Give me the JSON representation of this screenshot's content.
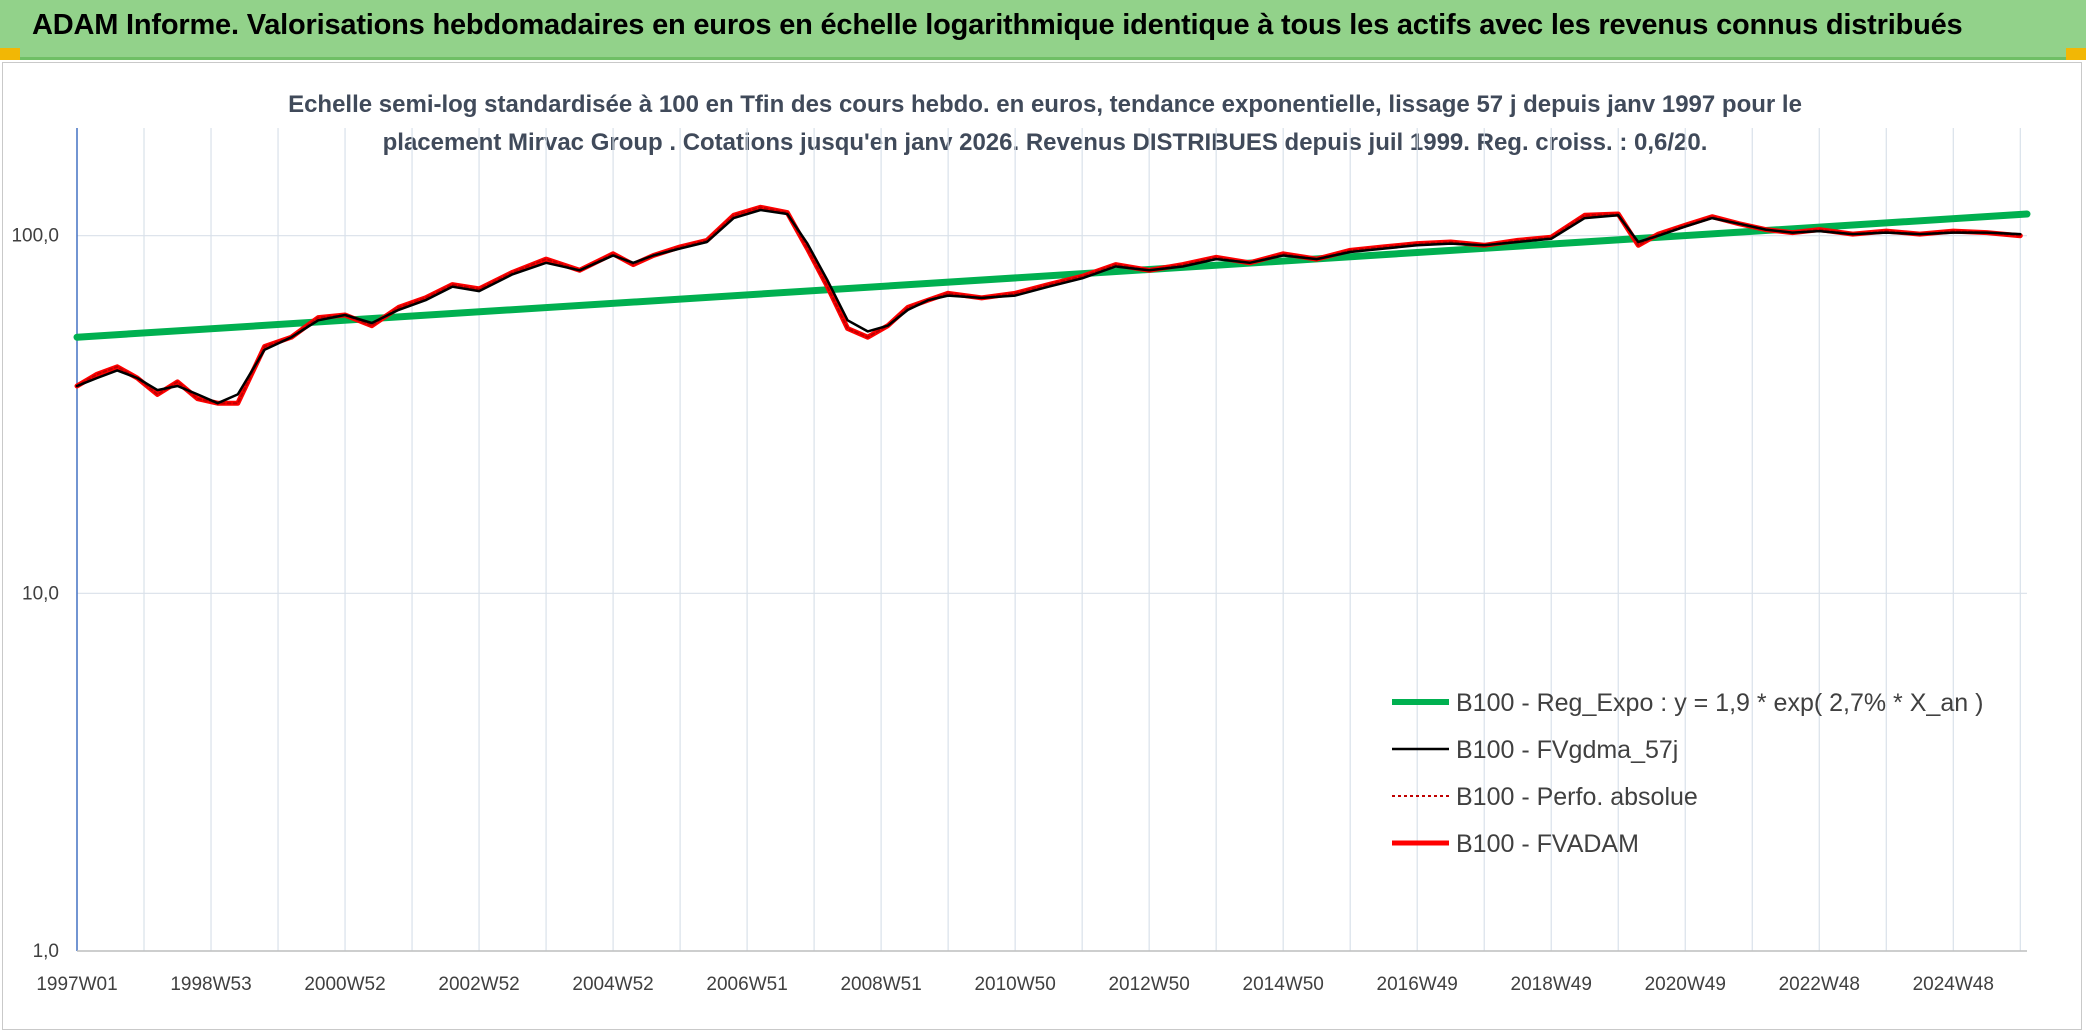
{
  "banner": {
    "title": "ADAM Informe. Valorisations hebdomadaires en euros en échelle logarithmique identique à tous les actifs avec les revenus connus distribués"
  },
  "colors": {
    "banner_bg": "#92d28a",
    "regression": "#00b050",
    "smoothed": "#000000",
    "absolute": "#c00000",
    "fvadam": "#ff0000",
    "grid": "#d9e1ea"
  },
  "chart_data": {
    "type": "line",
    "title_line1": "Echelle semi-log standardisée à 100 en Tfin des cours hebdo. en euros, tendance exponentielle, lissage 57 j depuis janv 1997 pour le",
    "title_line2": "placement Mirvac Group . Cotations jusqu'en janv 2026. Revenus DISTRIBUES depuis juil 1999. Reg. croiss. : 0,6/20.",
    "y_scale": "log",
    "ylim": [
      1,
      200
    ],
    "y_ticks": [
      {
        "value": 1,
        "label": "1,0"
      },
      {
        "value": 10,
        "label": "10,0"
      },
      {
        "value": 100,
        "label": "100,0"
      }
    ],
    "xlim": [
      1997.0,
      2026.1
    ],
    "x_ticks": [
      {
        "value": 1997.0,
        "label": "1997W01"
      },
      {
        "value": 1999.0,
        "label": "1998W53"
      },
      {
        "value": 2001.0,
        "label": "2000W52"
      },
      {
        "value": 2003.0,
        "label": "2002W52"
      },
      {
        "value": 2005.0,
        "label": "2004W52"
      },
      {
        "value": 2007.0,
        "label": "2006W51"
      },
      {
        "value": 2009.0,
        "label": "2008W51"
      },
      {
        "value": 2011.0,
        "label": "2010W50"
      },
      {
        "value": 2013.0,
        "label": "2012W50"
      },
      {
        "value": 2015.0,
        "label": "2014W50"
      },
      {
        "value": 2017.0,
        "label": "2016W49"
      },
      {
        "value": 2019.0,
        "label": "2018W49"
      },
      {
        "value": 2021.0,
        "label": "2020W49"
      },
      {
        "value": 2023.0,
        "label": "2022W48"
      },
      {
        "value": 2025.0,
        "label": "2024W48"
      }
    ],
    "grid": true,
    "legend_position": "bottom-right",
    "series": [
      {
        "name": "B100 - Reg_Expo : y = 1,9 * exp( 2,7% *  X_an )",
        "style": "regression",
        "x": [
          1997.0,
          2026.1
        ],
        "y": [
          52,
          115
        ]
      },
      {
        "name": "B100 - FVgdma_57j",
        "style": "smoothed",
        "x": [
          1997.0,
          1997.3,
          1997.6,
          1997.9,
          1998.2,
          1998.5,
          1998.8,
          1999.1,
          1999.4,
          1999.8,
          2000.2,
          2000.6,
          2001.0,
          2001.4,
          2001.8,
          2002.2,
          2002.6,
          2003.0,
          2003.5,
          2004.0,
          2004.5,
          2005.0,
          2005.3,
          2005.6,
          2006.0,
          2006.4,
          2006.8,
          2007.2,
          2007.6,
          2007.9,
          2008.2,
          2008.5,
          2008.8,
          2009.1,
          2009.4,
          2009.7,
          2010.0,
          2010.5,
          2011.0,
          2011.5,
          2012.0,
          2012.5,
          2013.0,
          2013.5,
          2014.0,
          2014.5,
          2015.0,
          2015.5,
          2016.0,
          2016.5,
          2017.0,
          2017.5,
          2018.0,
          2018.5,
          2019.0,
          2019.5,
          2020.0,
          2020.3,
          2020.6,
          2021.0,
          2021.4,
          2021.8,
          2022.2,
          2022.6,
          2023.0,
          2023.5,
          2024.0,
          2024.5,
          2025.0,
          2025.5,
          2026.0
        ],
        "y": [
          38,
          40,
          42,
          40,
          37,
          38,
          36,
          34,
          36,
          48,
          52,
          58,
          60,
          57,
          62,
          66,
          72,
          70,
          78,
          84,
          80,
          88,
          84,
          88,
          92,
          96,
          112,
          118,
          115,
          95,
          75,
          58,
          54,
          56,
          62,
          66,
          68,
          67,
          68,
          72,
          76,
          82,
          80,
          82,
          86,
          84,
          88,
          86,
          90,
          92,
          94,
          95,
          94,
          96,
          98,
          112,
          114,
          96,
          100,
          106,
          112,
          108,
          104,
          102,
          103,
          101,
          102,
          101,
          102,
          102,
          101
        ]
      },
      {
        "name": "B100 - Perfo. absolue",
        "style": "absolute",
        "x": [
          1997.0,
          1997.3,
          1997.6,
          1997.9,
          1998.2,
          1998.5,
          1998.8,
          1999.1,
          1999.4,
          1999.8,
          2000.2,
          2000.6,
          2001.0,
          2001.4,
          2001.8,
          2002.2,
          2002.6,
          2003.0,
          2003.5,
          2004.0,
          2004.5,
          2005.0,
          2005.3,
          2005.6,
          2006.0,
          2006.4,
          2006.8,
          2007.2,
          2007.6,
          2007.9,
          2008.2,
          2008.5,
          2008.8,
          2009.1,
          2009.4,
          2009.7,
          2010.0,
          2010.5,
          2011.0,
          2011.5,
          2012.0,
          2012.5,
          2013.0,
          2013.5,
          2014.0,
          2014.5,
          2015.0,
          2015.5,
          2016.0,
          2016.5,
          2017.0,
          2017.5,
          2018.0,
          2018.5,
          2019.0,
          2019.5,
          2020.0,
          2020.3,
          2020.6,
          2021.0,
          2021.4,
          2021.8,
          2022.2,
          2022.6,
          2023.0,
          2023.5,
          2024.0,
          2024.5,
          2025.0,
          2025.5,
          2026.0
        ],
        "y": [
          38,
          41,
          43,
          40,
          36,
          39,
          35,
          34,
          34,
          49,
          52,
          59,
          60,
          56,
          63,
          67,
          73,
          71,
          79,
          86,
          80,
          89,
          83,
          88,
          93,
          97,
          114,
          120,
          116,
          92,
          72,
          55,
          52,
          56,
          63,
          66,
          69,
          67,
          69,
          73,
          77,
          83,
          80,
          83,
          87,
          84,
          89,
          86,
          91,
          93,
          95,
          96,
          94,
          97,
          99,
          114,
          115,
          94,
          101,
          107,
          113,
          108,
          104,
          102,
          104,
          101,
          103,
          101,
          103,
          102,
          100
        ]
      },
      {
        "name": "B100 - FVADAM",
        "style": "fvadam",
        "x": [
          1997.0,
          1997.3,
          1997.6,
          1997.9,
          1998.2,
          1998.5,
          1998.8,
          1999.1,
          1999.4,
          1999.8,
          2000.2,
          2000.6,
          2001.0,
          2001.4,
          2001.8,
          2002.2,
          2002.6,
          2003.0,
          2003.5,
          2004.0,
          2004.5,
          2005.0,
          2005.3,
          2005.6,
          2006.0,
          2006.4,
          2006.8,
          2007.2,
          2007.6,
          2007.9,
          2008.2,
          2008.5,
          2008.8,
          2009.1,
          2009.4,
          2009.7,
          2010.0,
          2010.5,
          2011.0,
          2011.5,
          2012.0,
          2012.5,
          2013.0,
          2013.5,
          2014.0,
          2014.5,
          2015.0,
          2015.5,
          2016.0,
          2016.5,
          2017.0,
          2017.5,
          2018.0,
          2018.5,
          2019.0,
          2019.5,
          2020.0,
          2020.3,
          2020.6,
          2021.0,
          2021.4,
          2021.8,
          2022.2,
          2022.6,
          2023.0,
          2023.5,
          2024.0,
          2024.5,
          2025.0,
          2025.5,
          2026.0
        ],
        "y": [
          38,
          41,
          43,
          40,
          36,
          39,
          35,
          34,
          34,
          49,
          52,
          59,
          60,
          56,
          63,
          67,
          73,
          71,
          79,
          86,
          80,
          89,
          83,
          88,
          93,
          97,
          114,
          120,
          116,
          92,
          72,
          55,
          52,
          56,
          63,
          66,
          69,
          67,
          69,
          73,
          77,
          83,
          80,
          83,
          87,
          84,
          89,
          86,
          91,
          93,
          95,
          96,
          94,
          97,
          99,
          114,
          115,
          94,
          101,
          107,
          113,
          108,
          104,
          102,
          104,
          101,
          103,
          101,
          103,
          102,
          100
        ]
      }
    ]
  }
}
